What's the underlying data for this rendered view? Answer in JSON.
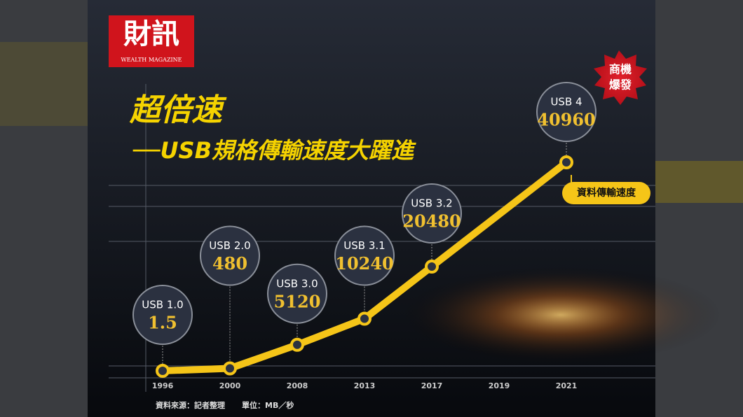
{
  "logo": {
    "title": "財訊",
    "subtitle": "WEALTH MAGAZINE"
  },
  "badge": {
    "lines": [
      "商機",
      "爆發"
    ]
  },
  "chart_data": {
    "type": "line",
    "title": "超倍速",
    "subtitle": "──USB規格傳輸速度大躍進",
    "xticks": [
      "1996",
      "2000",
      "2008",
      "2013",
      "2017",
      "2019",
      "2021"
    ],
    "series": [
      {
        "name": "資料傳輸速度",
        "color": "#f5c518",
        "x": [
          "1996",
          "2000",
          "2008",
          "2013",
          "2017",
          "2021"
        ],
        "labels": [
          "USB 1.0",
          "USB 2.0",
          "USB 3.0",
          "USB 3.1",
          "USB 3.2",
          "USB 4"
        ],
        "values": [
          1.5,
          480,
          5120,
          10240,
          20480,
          40960
        ]
      }
    ],
    "source": "資料來源：記者整理",
    "unit": "單位：MB／秒"
  }
}
